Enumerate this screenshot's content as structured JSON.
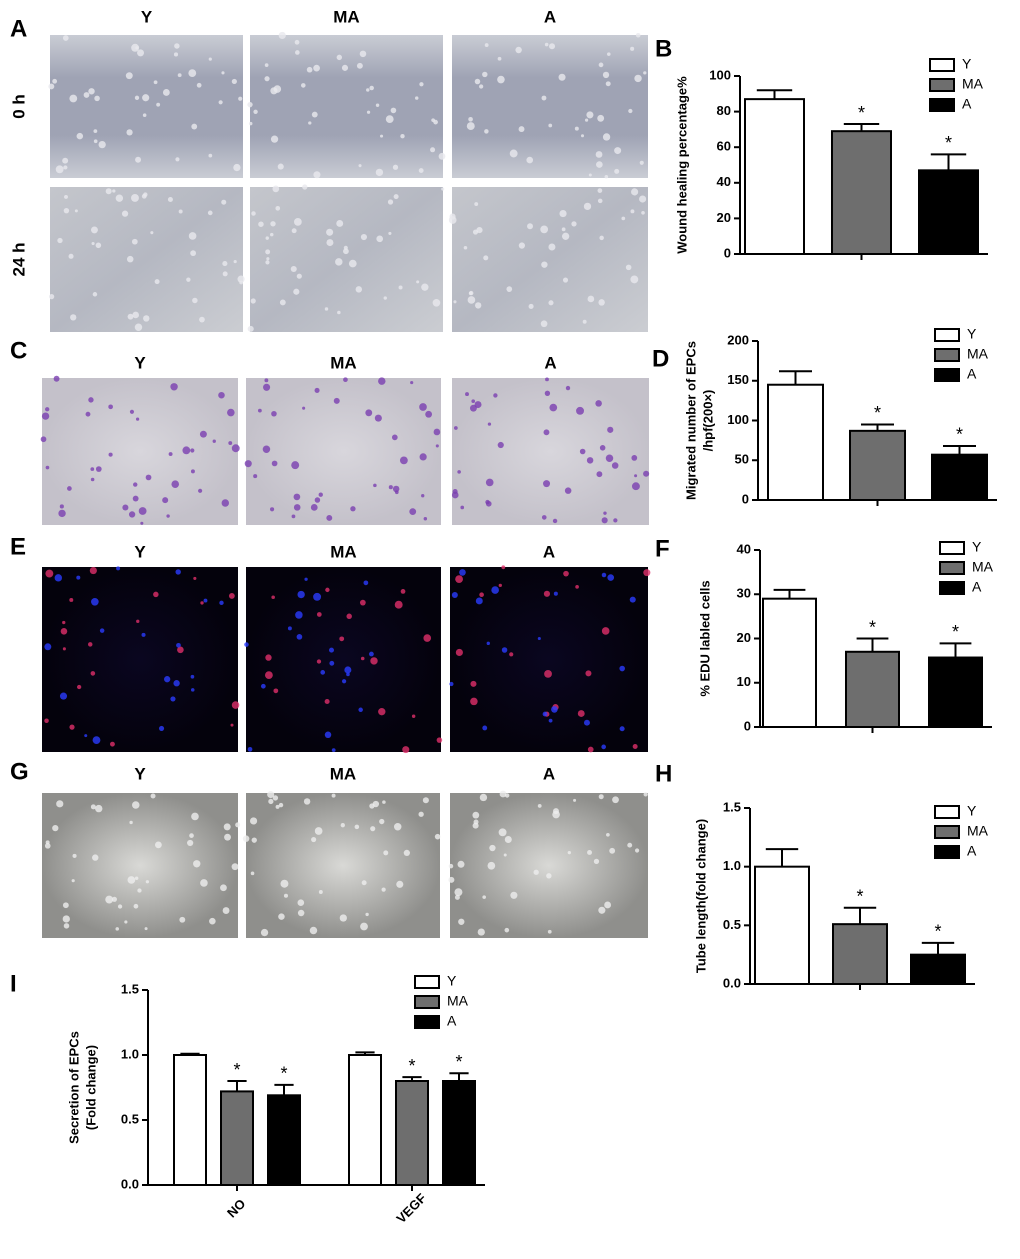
{
  "panels": [
    {
      "letter": "A",
      "columns": [
        "Y",
        "MA",
        "A"
      ],
      "rows": [
        "0 h",
        "24 h"
      ]
    },
    {
      "letter": "C",
      "columns": [
        "Y",
        "MA",
        "A"
      ]
    },
    {
      "letter": "E",
      "columns": [
        "Y",
        "MA",
        "A"
      ]
    },
    {
      "letter": "G",
      "columns": [
        "Y",
        "MA",
        "A"
      ]
    }
  ],
  "chart_data": [
    {
      "type": "bar",
      "letter": "B",
      "ylabel": [
        "Wound healing percentage%"
      ],
      "ylim": [
        0,
        100
      ],
      "yticks": [
        0,
        20,
        40,
        60,
        80,
        100
      ],
      "series": [
        {
          "name": "Y",
          "color": "#ffffff",
          "values": [
            87
          ],
          "errors": [
            5
          ],
          "markers": [
            null
          ]
        },
        {
          "name": "MA",
          "color": "#6e6e6e",
          "values": [
            69
          ],
          "errors": [
            4
          ],
          "markers": [
            "*"
          ]
        },
        {
          "name": "A",
          "color": "#000000",
          "values": [
            47
          ],
          "errors": [
            9
          ],
          "markers": [
            "*"
          ]
        }
      ]
    },
    {
      "type": "bar",
      "letter": "D",
      "ylabel": [
        "Migrated number of EPCs",
        "/hpf(200×)"
      ],
      "ylim": [
        0,
        200
      ],
      "yticks": [
        0,
        50,
        100,
        150,
        200
      ],
      "series": [
        {
          "name": "Y",
          "color": "#ffffff",
          "values": [
            145
          ],
          "errors": [
            17
          ],
          "markers": [
            null
          ]
        },
        {
          "name": "MA",
          "color": "#6e6e6e",
          "values": [
            87
          ],
          "errors": [
            8
          ],
          "markers": [
            "*"
          ]
        },
        {
          "name": "A",
          "color": "#000000",
          "values": [
            57
          ],
          "errors": [
            11
          ],
          "markers": [
            "*"
          ]
        }
      ]
    },
    {
      "type": "bar",
      "letter": "F",
      "ylabel": [
        "% EDU labled cells"
      ],
      "ylim": [
        0,
        40
      ],
      "yticks": [
        0,
        10,
        20,
        30,
        40
      ],
      "series": [
        {
          "name": "Y",
          "color": "#ffffff",
          "values": [
            29
          ],
          "errors": [
            2
          ],
          "markers": [
            null
          ]
        },
        {
          "name": "MA",
          "color": "#6e6e6e",
          "values": [
            17
          ],
          "errors": [
            3
          ],
          "markers": [
            "*"
          ]
        },
        {
          "name": "A",
          "color": "#000000",
          "values": [
            15.7
          ],
          "errors": [
            3.2
          ],
          "markers": [
            "*"
          ]
        }
      ]
    },
    {
      "type": "bar",
      "letter": "H",
      "ylabel": [
        "Tube length(fold change)"
      ],
      "ylim": [
        0,
        1.5
      ],
      "yticks": [
        {
          "value": 0,
          "label": "0.0"
        },
        0.5,
        {
          "value": 1,
          "label": "1.0"
        },
        1.5
      ],
      "series": [
        {
          "name": "Y",
          "color": "#ffffff",
          "values": [
            1.0
          ],
          "errors": [
            0.15
          ],
          "markers": [
            null
          ]
        },
        {
          "name": "MA",
          "color": "#6e6e6e",
          "values": [
            0.51
          ],
          "errors": [
            0.14
          ],
          "markers": [
            "*"
          ]
        },
        {
          "name": "A",
          "color": "#000000",
          "values": [
            0.25
          ],
          "errors": [
            0.1
          ],
          "markers": [
            "*"
          ]
        }
      ]
    },
    {
      "type": "bar",
      "letter": "I",
      "ylabel": [
        "Secretion of EPCs",
        "(Fold change)"
      ],
      "ylim": [
        0,
        1.5
      ],
      "yticks": [
        {
          "value": 0,
          "label": "0.0"
        },
        0.5,
        {
          "value": 1,
          "label": "1.0"
        },
        1.5
      ],
      "categories": [
        "NO",
        "VEGF"
      ],
      "series": [
        {
          "name": "Y",
          "color": "#ffffff",
          "values": [
            1.0,
            1.0
          ],
          "errors": [
            0.01,
            0.02
          ],
          "markers": [
            null,
            null
          ]
        },
        {
          "name": "MA",
          "color": "#6e6e6e",
          "values": [
            0.72,
            0.8
          ],
          "errors": [
            0.08,
            0.03
          ],
          "markers": [
            "*",
            "*"
          ]
        },
        {
          "name": "A",
          "color": "#000000",
          "values": [
            0.69,
            0.8
          ],
          "errors": [
            0.08,
            0.06
          ],
          "markers": [
            "*",
            "*"
          ]
        }
      ]
    }
  ]
}
